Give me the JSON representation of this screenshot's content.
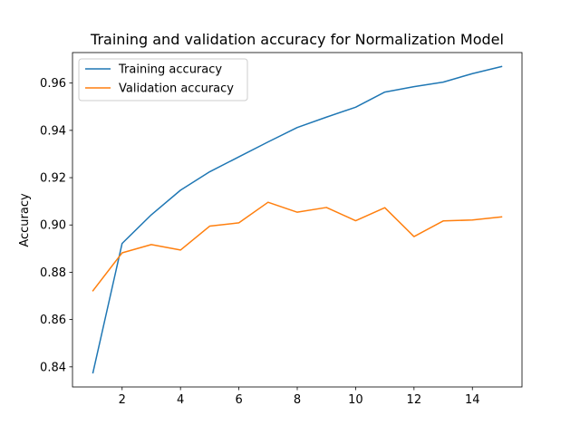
{
  "chart_data": {
    "type": "line",
    "title": "Training and validation accuracy for Normalization Model",
    "xlabel": "",
    "ylabel": "Accuracy",
    "xlim": [
      0.3,
      15.7
    ],
    "ylim": [
      0.8315,
      0.9729
    ],
    "xticks": [
      2,
      4,
      6,
      8,
      10,
      12,
      14
    ],
    "yticks": [
      0.84,
      0.86,
      0.88,
      0.9,
      0.92,
      0.94,
      0.96
    ],
    "ytick_labels": [
      "0.84",
      "0.86",
      "0.88",
      "0.90",
      "0.92",
      "0.94",
      "0.96"
    ],
    "x": [
      1,
      2,
      3,
      4,
      5,
      6,
      7,
      8,
      9,
      10,
      11,
      12,
      13,
      14,
      15
    ],
    "series": [
      {
        "name": "Training accuracy",
        "color": "#1f77b4",
        "values": [
          0.8375,
          0.8922,
          0.9043,
          0.9147,
          0.9225,
          0.9288,
          0.9351,
          0.9412,
          0.9456,
          0.9498,
          0.9562,
          0.9585,
          0.9604,
          0.964,
          0.967
        ]
      },
      {
        "name": "Validation accuracy",
        "color": "#ff7f0e",
        "values": [
          0.8722,
          0.8882,
          0.8917,
          0.8894,
          0.8995,
          0.9009,
          0.9096,
          0.9054,
          0.9074,
          0.9018,
          0.9073,
          0.8951,
          0.9017,
          0.9021,
          0.9034
        ]
      }
    ],
    "grid": false,
    "legend_position": "top-left"
  }
}
